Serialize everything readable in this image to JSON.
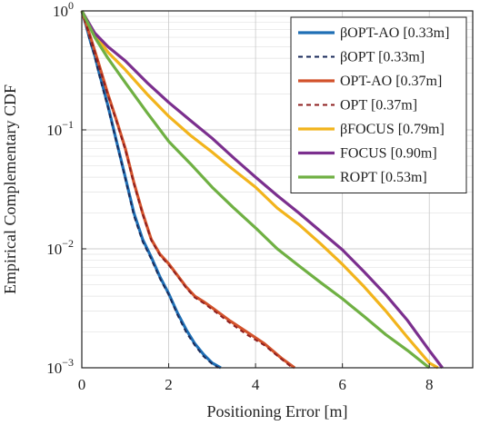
{
  "chart_data": {
    "type": "line",
    "title": "",
    "xlabel": "Positioning Error [m]",
    "ylabel": "Empirical Complementary CDF",
    "xlim": [
      0,
      9
    ],
    "ylim": [
      0.001,
      1
    ],
    "yscale": "log",
    "grid": true,
    "legend_position": "top-right",
    "x_ticks": [
      {
        "value": 0,
        "label": "0"
      },
      {
        "value": 2,
        "label": "2"
      },
      {
        "value": 4,
        "label": "4"
      },
      {
        "value": 6,
        "label": "6"
      },
      {
        "value": 8,
        "label": "8"
      }
    ],
    "y_ticks": [
      {
        "value": 1,
        "base": "10",
        "exp": "0"
      },
      {
        "value": 0.1,
        "base": "10",
        "exp": "−1"
      },
      {
        "value": 0.01,
        "base": "10",
        "exp": "−2"
      },
      {
        "value": 0.001,
        "base": "10",
        "exp": "−3"
      }
    ],
    "series": [
      {
        "name": "βOPT-AO [0.33m]",
        "color": "#1f6fb5",
        "dash": "solid",
        "points": [
          [
            0,
            1
          ],
          [
            0.1,
            0.75
          ],
          [
            0.2,
            0.55
          ],
          [
            0.3,
            0.42
          ],
          [
            0.4,
            0.3
          ],
          [
            0.5,
            0.22
          ],
          [
            0.6,
            0.16
          ],
          [
            0.8,
            0.08
          ],
          [
            1.0,
            0.04
          ],
          [
            1.2,
            0.02
          ],
          [
            1.4,
            0.012
          ],
          [
            1.6,
            0.0085
          ],
          [
            1.8,
            0.0058
          ],
          [
            2.0,
            0.0042
          ],
          [
            2.2,
            0.0029
          ],
          [
            2.4,
            0.0021
          ],
          [
            2.6,
            0.0016
          ],
          [
            2.8,
            0.0013
          ],
          [
            3.0,
            0.0011
          ],
          [
            3.2,
            0.001
          ]
        ]
      },
      {
        "name": "βOPT [0.33m]",
        "color": "#1a2a5a",
        "dash": "dashed",
        "points": [
          [
            0,
            1
          ],
          [
            0.1,
            0.74
          ],
          [
            0.2,
            0.54
          ],
          [
            0.3,
            0.41
          ],
          [
            0.4,
            0.29
          ],
          [
            0.5,
            0.21
          ],
          [
            0.6,
            0.155
          ],
          [
            0.8,
            0.078
          ],
          [
            1.0,
            0.039
          ],
          [
            1.2,
            0.019
          ],
          [
            1.4,
            0.0115
          ],
          [
            1.6,
            0.0082
          ],
          [
            1.8,
            0.0056
          ],
          [
            2.0,
            0.0041
          ],
          [
            2.2,
            0.0028
          ],
          [
            2.4,
            0.002
          ],
          [
            2.6,
            0.00155
          ],
          [
            2.8,
            0.00125
          ],
          [
            3.0,
            0.00108
          ],
          [
            3.15,
            0.001
          ]
        ]
      },
      {
        "name": "OPT-AO [0.37m]",
        "color": "#d2522b",
        "dash": "solid",
        "points": [
          [
            0,
            1
          ],
          [
            0.2,
            0.6
          ],
          [
            0.4,
            0.35
          ],
          [
            0.6,
            0.2
          ],
          [
            0.8,
            0.12
          ],
          [
            1.0,
            0.07
          ],
          [
            1.2,
            0.036
          ],
          [
            1.4,
            0.02
          ],
          [
            1.6,
            0.012
          ],
          [
            1.8,
            0.009
          ],
          [
            2.0,
            0.0075
          ],
          [
            2.2,
            0.006
          ],
          [
            2.4,
            0.0048
          ],
          [
            2.6,
            0.004
          ],
          [
            2.8,
            0.0036
          ],
          [
            3.0,
            0.0032
          ],
          [
            3.4,
            0.0025
          ],
          [
            3.8,
            0.002
          ],
          [
            4.2,
            0.0016
          ],
          [
            4.6,
            0.0012
          ],
          [
            4.9,
            0.001
          ]
        ]
      },
      {
        "name": "OPT [0.37m]",
        "color": "#8e1f1f",
        "dash": "dashed",
        "points": [
          [
            0,
            1
          ],
          [
            0.2,
            0.59
          ],
          [
            0.4,
            0.34
          ],
          [
            0.6,
            0.195
          ],
          [
            0.8,
            0.117
          ],
          [
            1.0,
            0.068
          ],
          [
            1.2,
            0.035
          ],
          [
            1.4,
            0.0195
          ],
          [
            1.6,
            0.0118
          ],
          [
            1.8,
            0.0088
          ],
          [
            2.0,
            0.0073
          ],
          [
            2.2,
            0.0059
          ],
          [
            2.4,
            0.0047
          ],
          [
            2.6,
            0.0039
          ],
          [
            2.8,
            0.0035
          ],
          [
            3.0,
            0.0031
          ],
          [
            3.4,
            0.0024
          ],
          [
            3.8,
            0.0019
          ],
          [
            4.2,
            0.00155
          ],
          [
            4.6,
            0.00118
          ],
          [
            4.85,
            0.001
          ]
        ]
      },
      {
        "name": "βFOCUS [0.79m]",
        "color": "#f2b41c",
        "dash": "solid",
        "points": [
          [
            0,
            1
          ],
          [
            0.3,
            0.63
          ],
          [
            0.6,
            0.45
          ],
          [
            1,
            0.32
          ],
          [
            1.5,
            0.2
          ],
          [
            2,
            0.13
          ],
          [
            2.5,
            0.09
          ],
          [
            3,
            0.065
          ],
          [
            3.5,
            0.046
          ],
          [
            4,
            0.033
          ],
          [
            4.5,
            0.022
          ],
          [
            5,
            0.016
          ],
          [
            5.5,
            0.011
          ],
          [
            6,
            0.0074
          ],
          [
            6.5,
            0.0048
          ],
          [
            7,
            0.003
          ],
          [
            7.5,
            0.0018
          ],
          [
            8,
            0.0011
          ],
          [
            8.2,
            0.001
          ]
        ]
      },
      {
        "name": "FOCUS [0.90m]",
        "color": "#7b2f8e",
        "dash": "solid",
        "points": [
          [
            0,
            1
          ],
          [
            0.3,
            0.65
          ],
          [
            0.6,
            0.5
          ],
          [
            1,
            0.38
          ],
          [
            1.5,
            0.25
          ],
          [
            2,
            0.17
          ],
          [
            2.5,
            0.12
          ],
          [
            3,
            0.085
          ],
          [
            3.5,
            0.058
          ],
          [
            4,
            0.04
          ],
          [
            4.5,
            0.028
          ],
          [
            5,
            0.02
          ],
          [
            5.5,
            0.014
          ],
          [
            6,
            0.0098
          ],
          [
            6.5,
            0.0064
          ],
          [
            7,
            0.0041
          ],
          [
            7.5,
            0.0025
          ],
          [
            8,
            0.0014
          ],
          [
            8.3,
            0.001
          ]
        ]
      },
      {
        "name": "ROPT [0.53m]",
        "color": "#6fb043",
        "dash": "solid",
        "points": [
          [
            0,
            1
          ],
          [
            0.3,
            0.6
          ],
          [
            0.6,
            0.4
          ],
          [
            1,
            0.25
          ],
          [
            1.5,
            0.14
          ],
          [
            2,
            0.08
          ],
          [
            2.5,
            0.052
          ],
          [
            3,
            0.033
          ],
          [
            3.5,
            0.022
          ],
          [
            4,
            0.015
          ],
          [
            4.5,
            0.01
          ],
          [
            5,
            0.0072
          ],
          [
            5.5,
            0.0052
          ],
          [
            6,
            0.0038
          ],
          [
            6.5,
            0.0027
          ],
          [
            7,
            0.0019
          ],
          [
            7.5,
            0.0014
          ],
          [
            8,
            0.001
          ]
        ]
      }
    ]
  }
}
